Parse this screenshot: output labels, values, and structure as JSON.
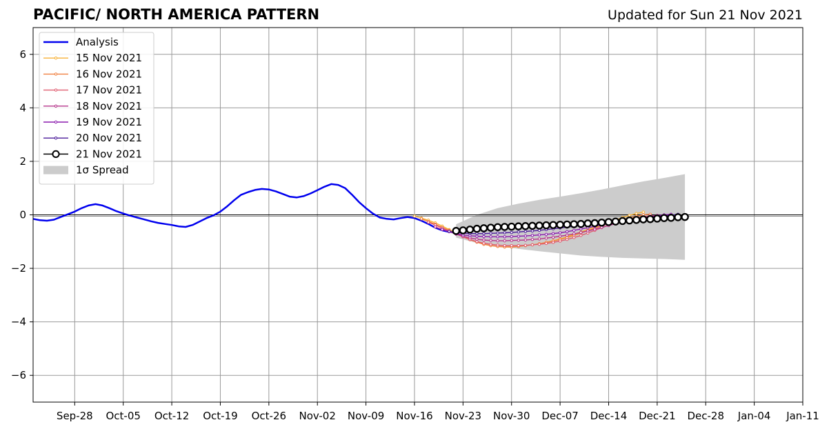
{
  "chart_data": {
    "type": "line",
    "title": "PACIFIC/ NORTH AMERICA PATTERN",
    "subtitle": "Updated for Sun 21 Nov 2021",
    "xlabel": "",
    "ylabel": "",
    "x_range": [
      "2021-09-22",
      "2022-01-11"
    ],
    "ylim": [
      -7,
      7
    ],
    "y_ticks": [
      -6,
      -4,
      -2,
      0,
      2,
      4,
      6
    ],
    "y_tick_labels": [
      "−6",
      "−4",
      "−2",
      "0",
      "2",
      "4",
      "6"
    ],
    "x_ticks": [
      "2021-09-28",
      "2021-10-05",
      "2021-10-12",
      "2021-10-19",
      "2021-10-26",
      "2021-11-02",
      "2021-11-09",
      "2021-11-16",
      "2021-11-23",
      "2021-11-30",
      "2021-12-07",
      "2021-12-14",
      "2021-12-21",
      "2021-12-28",
      "2022-01-04",
      "2022-01-11"
    ],
    "x_tick_labels": [
      "Sep-28",
      "Oct-05",
      "Oct-12",
      "Oct-19",
      "Oct-26",
      "Nov-02",
      "Nov-09",
      "Nov-16",
      "Nov-23",
      "Nov-30",
      "Dec-07",
      "Dec-14",
      "Dec-21",
      "Dec-28",
      "Jan-04",
      "Jan-11"
    ],
    "grid": true,
    "zero_line": 0,
    "legend_position": "top-left",
    "colors": {
      "analysis": "#0000ee",
      "spread": "#cccccc",
      "grid": "#999999"
    },
    "series": [
      {
        "name": "Analysis",
        "style": "line",
        "color": "#0000ee",
        "x": [
          "2021-09-22",
          "2021-09-23",
          "2021-09-24",
          "2021-09-25",
          "2021-09-26",
          "2021-09-27",
          "2021-09-28",
          "2021-09-29",
          "2021-09-30",
          "2021-10-01",
          "2021-10-02",
          "2021-10-03",
          "2021-10-04",
          "2021-10-05",
          "2021-10-06",
          "2021-10-07",
          "2021-10-08",
          "2021-10-09",
          "2021-10-10",
          "2021-10-11",
          "2021-10-12",
          "2021-10-13",
          "2021-10-14",
          "2021-10-15",
          "2021-10-16",
          "2021-10-17",
          "2021-10-18",
          "2021-10-19",
          "2021-10-20",
          "2021-10-21",
          "2021-10-22",
          "2021-10-23",
          "2021-10-24",
          "2021-10-25",
          "2021-10-26",
          "2021-10-27",
          "2021-10-28",
          "2021-10-29",
          "2021-10-30",
          "2021-10-31",
          "2021-11-01",
          "2021-11-02",
          "2021-11-03",
          "2021-11-04",
          "2021-11-05",
          "2021-11-06",
          "2021-11-07",
          "2021-11-08",
          "2021-11-09",
          "2021-11-10",
          "2021-11-11",
          "2021-11-12",
          "2021-11-13",
          "2021-11-14",
          "2021-11-15",
          "2021-11-16",
          "2021-11-17",
          "2021-11-18",
          "2021-11-19",
          "2021-11-20",
          "2021-11-21"
        ],
        "y": [
          -0.15,
          -0.2,
          -0.22,
          -0.18,
          -0.08,
          0.02,
          0.12,
          0.25,
          0.35,
          0.4,
          0.35,
          0.25,
          0.14,
          0.05,
          -0.03,
          -0.1,
          -0.17,
          -0.24,
          -0.3,
          -0.34,
          -0.38,
          -0.43,
          -0.45,
          -0.38,
          -0.25,
          -0.12,
          -0.02,
          0.12,
          0.32,
          0.55,
          0.75,
          0.85,
          0.93,
          0.97,
          0.95,
          0.88,
          0.78,
          0.68,
          0.65,
          0.7,
          0.8,
          0.92,
          1.05,
          1.15,
          1.12,
          1.0,
          0.75,
          0.48,
          0.25,
          0.05,
          -0.1,
          -0.15,
          -0.17,
          -0.12,
          -0.08,
          -0.12,
          -0.22,
          -0.34,
          -0.48,
          -0.58,
          -0.64
        ]
      },
      {
        "name": "15 Nov 2021",
        "style": "forecast",
        "color": "#f7b135",
        "x": [
          "2021-11-16",
          "2021-11-17",
          "2021-11-18",
          "2021-11-19",
          "2021-11-20",
          "2021-11-21",
          "2021-11-22",
          "2021-11-23",
          "2021-11-24",
          "2021-11-25",
          "2021-11-26",
          "2021-11-27",
          "2021-11-28",
          "2021-11-29",
          "2021-11-30",
          "2021-12-01",
          "2021-12-02",
          "2021-12-03",
          "2021-12-04",
          "2021-12-05",
          "2021-12-06",
          "2021-12-07",
          "2021-12-08",
          "2021-12-09",
          "2021-12-10",
          "2021-12-11",
          "2021-12-12",
          "2021-12-13",
          "2021-12-14",
          "2021-12-15",
          "2021-12-16",
          "2021-12-17",
          "2021-12-18",
          "2021-12-19"
        ],
        "y": [
          -0.05,
          -0.12,
          -0.2,
          -0.3,
          -0.42,
          -0.55,
          -0.68,
          -0.8,
          -0.92,
          -1.02,
          -1.1,
          -1.15,
          -1.18,
          -1.2,
          -1.2,
          -1.18,
          -1.15,
          -1.12,
          -1.08,
          -1.03,
          -0.97,
          -0.9,
          -0.82,
          -0.73,
          -0.64,
          -0.55,
          -0.46,
          -0.37,
          -0.28,
          -0.19,
          -0.1,
          -0.02,
          0.05,
          0.1
        ]
      },
      {
        "name": "16 Nov 2021",
        "style": "forecast",
        "color": "#f08040",
        "x": [
          "2021-11-17",
          "2021-11-18",
          "2021-11-19",
          "2021-11-20",
          "2021-11-21",
          "2021-11-22",
          "2021-11-23",
          "2021-11-24",
          "2021-11-25",
          "2021-11-26",
          "2021-11-27",
          "2021-11-28",
          "2021-11-29",
          "2021-11-30",
          "2021-12-01",
          "2021-12-02",
          "2021-12-03",
          "2021-12-04",
          "2021-12-05",
          "2021-12-06",
          "2021-12-07",
          "2021-12-08",
          "2021-12-09",
          "2021-12-10",
          "2021-12-11",
          "2021-12-12",
          "2021-12-13",
          "2021-12-14",
          "2021-12-15",
          "2021-12-16",
          "2021-12-17",
          "2021-12-18",
          "2021-12-19",
          "2021-12-20"
        ],
        "y": [
          -0.15,
          -0.25,
          -0.35,
          -0.47,
          -0.58,
          -0.7,
          -0.82,
          -0.93,
          -1.02,
          -1.1,
          -1.15,
          -1.18,
          -1.2,
          -1.2,
          -1.18,
          -1.15,
          -1.12,
          -1.08,
          -1.03,
          -0.98,
          -0.92,
          -0.85,
          -0.77,
          -0.68,
          -0.59,
          -0.5,
          -0.41,
          -0.33,
          -0.25,
          -0.18,
          -0.11,
          -0.05,
          0.0,
          0.02
        ]
      },
      {
        "name": "17 Nov 2021",
        "style": "forecast",
        "color": "#e05a6e",
        "x": [
          "2021-11-18",
          "2021-11-19",
          "2021-11-20",
          "2021-11-21",
          "2021-11-22",
          "2021-11-23",
          "2021-11-24",
          "2021-11-25",
          "2021-11-26",
          "2021-11-27",
          "2021-11-28",
          "2021-11-29",
          "2021-11-30",
          "2021-12-01",
          "2021-12-02",
          "2021-12-03",
          "2021-12-04",
          "2021-12-05",
          "2021-12-06",
          "2021-12-07",
          "2021-12-08",
          "2021-12-09",
          "2021-12-10",
          "2021-12-11",
          "2021-12-12",
          "2021-12-13",
          "2021-12-14",
          "2021-12-15",
          "2021-12-16",
          "2021-12-17",
          "2021-12-18",
          "2021-12-19",
          "2021-12-20",
          "2021-12-21"
        ],
        "y": [
          -0.28,
          -0.38,
          -0.5,
          -0.6,
          -0.72,
          -0.82,
          -0.92,
          -1.0,
          -1.06,
          -1.1,
          -1.13,
          -1.15,
          -1.15,
          -1.15,
          -1.14,
          -1.12,
          -1.1,
          -1.07,
          -1.03,
          -0.98,
          -0.92,
          -0.85,
          -0.77,
          -0.68,
          -0.58,
          -0.48,
          -0.39,
          -0.3,
          -0.23,
          -0.16,
          -0.11,
          -0.07,
          -0.04,
          -0.02
        ]
      },
      {
        "name": "18 Nov 2021",
        "style": "forecast",
        "color": "#b5338a",
        "x": [
          "2021-11-19",
          "2021-11-20",
          "2021-11-21",
          "2021-11-22",
          "2021-11-23",
          "2021-11-24",
          "2021-11-25",
          "2021-11-26",
          "2021-11-27",
          "2021-11-28",
          "2021-11-29",
          "2021-11-30",
          "2021-12-01",
          "2021-12-02",
          "2021-12-03",
          "2021-12-04",
          "2021-12-05",
          "2021-12-06",
          "2021-12-07",
          "2021-12-08",
          "2021-12-09",
          "2021-12-10",
          "2021-12-11",
          "2021-12-12",
          "2021-12-13",
          "2021-12-14",
          "2021-12-15",
          "2021-12-16",
          "2021-12-17",
          "2021-12-18",
          "2021-12-19",
          "2021-12-20",
          "2021-12-21",
          "2021-12-22"
        ],
        "y": [
          -0.45,
          -0.55,
          -0.63,
          -0.72,
          -0.8,
          -0.86,
          -0.91,
          -0.94,
          -0.96,
          -0.97,
          -0.97,
          -0.96,
          -0.95,
          -0.94,
          -0.92,
          -0.9,
          -0.87,
          -0.84,
          -0.8,
          -0.76,
          -0.71,
          -0.66,
          -0.6,
          -0.54,
          -0.47,
          -0.4,
          -0.33,
          -0.27,
          -0.22,
          -0.18,
          -0.14,
          -0.1,
          -0.06,
          -0.02
        ]
      },
      {
        "name": "19 Nov 2021",
        "style": "forecast",
        "color": "#8a1aad",
        "x": [
          "2021-11-20",
          "2021-11-21",
          "2021-11-22",
          "2021-11-23",
          "2021-11-24",
          "2021-11-25",
          "2021-11-26",
          "2021-11-27",
          "2021-11-28",
          "2021-11-29",
          "2021-11-30",
          "2021-12-01",
          "2021-12-02",
          "2021-12-03",
          "2021-12-04",
          "2021-12-05",
          "2021-12-06",
          "2021-12-07",
          "2021-12-08",
          "2021-12-09",
          "2021-12-10",
          "2021-12-11",
          "2021-12-12",
          "2021-12-13",
          "2021-12-14",
          "2021-12-15",
          "2021-12-16",
          "2021-12-17",
          "2021-12-18",
          "2021-12-19",
          "2021-12-20",
          "2021-12-21",
          "2021-12-22",
          "2021-12-23"
        ],
        "y": [
          -0.55,
          -0.63,
          -0.7,
          -0.75,
          -0.78,
          -0.8,
          -0.81,
          -0.82,
          -0.82,
          -0.82,
          -0.81,
          -0.8,
          -0.79,
          -0.77,
          -0.75,
          -0.73,
          -0.7,
          -0.67,
          -0.63,
          -0.58,
          -0.53,
          -0.48,
          -0.43,
          -0.38,
          -0.33,
          -0.28,
          -0.23,
          -0.18,
          -0.14,
          -0.1,
          -0.06,
          -0.03,
          0.0,
          0.02
        ]
      },
      {
        "name": "20 Nov 2021",
        "style": "forecast",
        "color": "#4a1a9a",
        "x": [
          "2021-11-21",
          "2021-11-22",
          "2021-11-23",
          "2021-11-24",
          "2021-11-25",
          "2021-11-26",
          "2021-11-27",
          "2021-11-28",
          "2021-11-29",
          "2021-11-30",
          "2021-12-01",
          "2021-12-02",
          "2021-12-03",
          "2021-12-04",
          "2021-12-05",
          "2021-12-06",
          "2021-12-07",
          "2021-12-08",
          "2021-12-09",
          "2021-12-10",
          "2021-12-11",
          "2021-12-12",
          "2021-12-13",
          "2021-12-14",
          "2021-12-15",
          "2021-12-16",
          "2021-12-17",
          "2021-12-18",
          "2021-12-19",
          "2021-12-20",
          "2021-12-21",
          "2021-12-22",
          "2021-12-23",
          "2021-12-24"
        ],
        "y": [
          -0.62,
          -0.66,
          -0.68,
          -0.7,
          -0.7,
          -0.7,
          -0.69,
          -0.68,
          -0.67,
          -0.66,
          -0.64,
          -0.62,
          -0.6,
          -0.58,
          -0.55,
          -0.52,
          -0.49,
          -0.46,
          -0.43,
          -0.4,
          -0.37,
          -0.34,
          -0.31,
          -0.28,
          -0.25,
          -0.22,
          -0.19,
          -0.16,
          -0.13,
          -0.1,
          -0.07,
          -0.04,
          -0.01,
          0.02
        ]
      },
      {
        "name": "21 Nov 2021",
        "style": "current",
        "color": "#000000",
        "x": [
          "2021-11-22",
          "2021-11-23",
          "2021-11-24",
          "2021-11-25",
          "2021-11-26",
          "2021-11-27",
          "2021-11-28",
          "2021-11-29",
          "2021-11-30",
          "2021-12-01",
          "2021-12-02",
          "2021-12-03",
          "2021-12-04",
          "2021-12-05",
          "2021-12-06",
          "2021-12-07",
          "2021-12-08",
          "2021-12-09",
          "2021-12-10",
          "2021-12-11",
          "2021-12-12",
          "2021-12-13",
          "2021-12-14",
          "2021-12-15",
          "2021-12-16",
          "2021-12-17",
          "2021-12-18",
          "2021-12-19",
          "2021-12-20",
          "2021-12-21",
          "2021-12-22",
          "2021-12-23",
          "2021-12-24",
          "2021-12-25"
        ],
        "y": [
          -0.6,
          -0.58,
          -0.55,
          -0.52,
          -0.5,
          -0.48,
          -0.46,
          -0.45,
          -0.44,
          -0.43,
          -0.42,
          -0.41,
          -0.4,
          -0.39,
          -0.38,
          -0.37,
          -0.36,
          -0.35,
          -0.34,
          -0.32,
          -0.31,
          -0.29,
          -0.27,
          -0.25,
          -0.23,
          -0.21,
          -0.19,
          -0.17,
          -0.16,
          -0.14,
          -0.12,
          -0.11,
          -0.09,
          -0.08
        ]
      }
    ],
    "spread": {
      "name": "1σ Spread",
      "color": "#cccccc",
      "x": [
        "2021-11-22",
        "2021-11-25",
        "2021-11-28",
        "2021-12-01",
        "2021-12-04",
        "2021-12-07",
        "2021-12-10",
        "2021-12-13",
        "2021-12-16",
        "2021-12-19",
        "2021-12-22",
        "2021-12-25"
      ],
      "upper": [
        -0.35,
        0.0,
        0.25,
        0.42,
        0.56,
        0.68,
        0.81,
        0.95,
        1.1,
        1.25,
        1.38,
        1.52
      ],
      "lower": [
        -0.85,
        -1.05,
        -1.17,
        -1.27,
        -1.36,
        -1.44,
        -1.52,
        -1.57,
        -1.61,
        -1.63,
        -1.65,
        -1.68
      ]
    }
  }
}
